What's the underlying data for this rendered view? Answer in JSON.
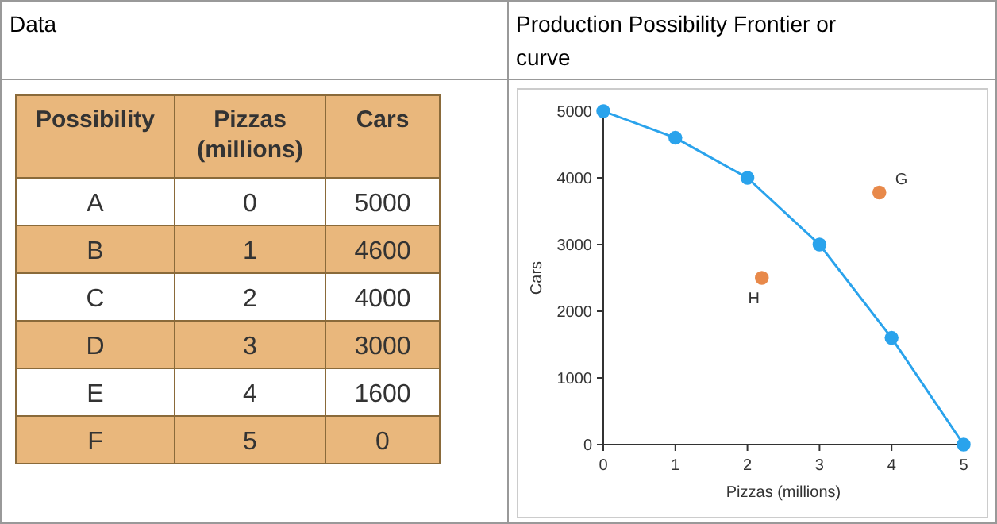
{
  "chart_data": [
    {
      "type": "other",
      "title": "Data",
      "legend_title": "Possibility",
      "categories": [
        "A",
        "B",
        "C",
        "D",
        "E",
        "F"
      ],
      "data_labels": true,
      "series": [
        {
          "name": "Pizzas (millions)",
          "values": [
            0,
            1,
            2,
            3,
            4,
            5
          ],
          "colors": [
            "#ffffff",
            "#e9b77c",
            "#ffffff",
            "#e9b77c",
            "#ffffff",
            "#e9b77c"
          ]
        },
        {
          "name": "Cars",
          "values": [
            5000,
            4600,
            4000,
            3000,
            1600,
            0
          ],
          "colors": [
            "#ffffff",
            "#e9b77c",
            "#ffffff",
            "#e9b77c",
            "#ffffff",
            "#e9b77c"
          ]
        }
      ]
    },
    {
      "type": "line",
      "title": "Production Possibility Frontier or curve",
      "xlabel": "Pizzas (millions)",
      "ylabel": "Cars",
      "xlim": [
        0,
        5
      ],
      "ylim": [
        0,
        5000
      ],
      "xticks": [
        0,
        1,
        2,
        3,
        4,
        5
      ],
      "yticks": [
        0,
        1000,
        2000,
        3000,
        4000,
        5000
      ],
      "grid": false,
      "marker": "circle",
      "series": [
        {
          "type": "line",
          "color": "#2aa3ec",
          "x": [
            0,
            1,
            2,
            3,
            4,
            5
          ],
          "values": [
            5000,
            4600,
            4000,
            3000,
            1600,
            0
          ]
        },
        {
          "type": "scatter",
          "color": "#e8894a",
          "x": [
            3.83,
            2.2
          ],
          "values": [
            3780,
            2500
          ]
        }
      ],
      "annotations": [
        {
          "text": "G",
          "x": 3.83,
          "y": 3780
        },
        {
          "text": "H",
          "x": 2.2,
          "y": 2500
        }
      ]
    }
  ]
}
